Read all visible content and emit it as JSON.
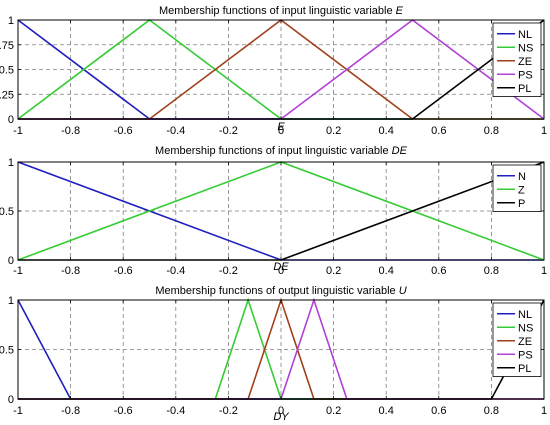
{
  "colors": {
    "blue": "#1f1fbf",
    "green": "#33cc33",
    "brown": "#a0401a",
    "purple": "#b040d8",
    "black": "#000000",
    "grid": "#7f7f7f"
  },
  "chart_data": [
    {
      "type": "line",
      "title_prefix": "Membership functions of input linguistic variable ",
      "title_var": "E",
      "xlabel": "E",
      "xlim": [
        -1,
        1
      ],
      "ylim": [
        0,
        1
      ],
      "xticks": [
        "-1",
        "-0.8",
        "-0.6",
        "-0.4",
        "-0.2",
        "0",
        "0.2",
        "0.4",
        "0.6",
        "0.8",
        "1"
      ],
      "yticks": [
        "0",
        "0.25",
        "0.5",
        "0.75",
        "1"
      ],
      "grid": true,
      "legend_position": "top-right",
      "series": [
        {
          "name": "NL",
          "color": "blue",
          "x": [
            -1,
            -0.5,
            1
          ],
          "y": [
            1,
            0,
            0
          ]
        },
        {
          "name": "NS",
          "color": "green",
          "x": [
            -1,
            -0.5,
            0,
            1
          ],
          "y": [
            0,
            1,
            0,
            0
          ]
        },
        {
          "name": "ZE",
          "color": "brown",
          "x": [
            -1,
            -0.5,
            0,
            0.5,
            1
          ],
          "y": [
            0,
            0,
            1,
            0,
            0
          ]
        },
        {
          "name": "PS",
          "color": "purple",
          "x": [
            -1,
            0,
            0.5,
            1
          ],
          "y": [
            0,
            0,
            1,
            0
          ]
        },
        {
          "name": "PL",
          "color": "black",
          "x": [
            -1,
            0.5,
            1
          ],
          "y": [
            0,
            0,
            1
          ]
        }
      ]
    },
    {
      "type": "line",
      "title_prefix": "Membership functions of input linguistic variable ",
      "title_var": "DE",
      "xlabel": "DE",
      "xlim": [
        -1,
        1
      ],
      "ylim": [
        0,
        1
      ],
      "xticks": [
        "-1",
        "-0.8",
        "-0.6",
        "-0.4",
        "-0.2",
        "0",
        "0.2",
        "0.4",
        "0.6",
        "0.8",
        "1"
      ],
      "yticks": [
        "0",
        "0.5",
        "1"
      ],
      "grid": true,
      "legend_position": "top-right",
      "series": [
        {
          "name": "N",
          "color": "blue",
          "x": [
            -1,
            0,
            1
          ],
          "y": [
            1,
            0,
            0
          ]
        },
        {
          "name": "Z",
          "color": "green",
          "x": [
            -1,
            0,
            1
          ],
          "y": [
            0,
            1,
            0
          ]
        },
        {
          "name": "P",
          "color": "black",
          "x": [
            -1,
            0,
            1
          ],
          "y": [
            0,
            0,
            1
          ]
        }
      ]
    },
    {
      "type": "line",
      "title_prefix": "Membership functions of output linguistic variable ",
      "title_var": "U",
      "xlabel": "DY",
      "xlim": [
        -1,
        1
      ],
      "ylim": [
        0,
        1
      ],
      "xticks": [
        "-1",
        "-0.8",
        "-0.6",
        "-0.4",
        "-0.2",
        "0",
        "0.2",
        "0.4",
        "0.6",
        "0.8",
        "1"
      ],
      "yticks": [
        "0",
        "0.5",
        "1"
      ],
      "grid": true,
      "legend_position": "top-right",
      "series": [
        {
          "name": "NL",
          "color": "blue",
          "x": [
            -1,
            -0.8,
            1
          ],
          "y": [
            1,
            0,
            0
          ]
        },
        {
          "name": "NS",
          "color": "green",
          "x": [
            -1,
            -0.25,
            -0.125,
            0,
            1
          ],
          "y": [
            0,
            0,
            1,
            0,
            0
          ]
        },
        {
          "name": "ZE",
          "color": "brown",
          "x": [
            -1,
            -0.125,
            0,
            0.125,
            1
          ],
          "y": [
            0,
            0,
            1,
            0,
            0
          ]
        },
        {
          "name": "PS",
          "color": "purple",
          "x": [
            -1,
            0,
            0.125,
            0.25,
            1
          ],
          "y": [
            0,
            0,
            1,
            0,
            0
          ]
        },
        {
          "name": "PL",
          "color": "black",
          "x": [
            -1,
            0.8,
            1
          ],
          "y": [
            0,
            0,
            1
          ]
        }
      ]
    }
  ]
}
